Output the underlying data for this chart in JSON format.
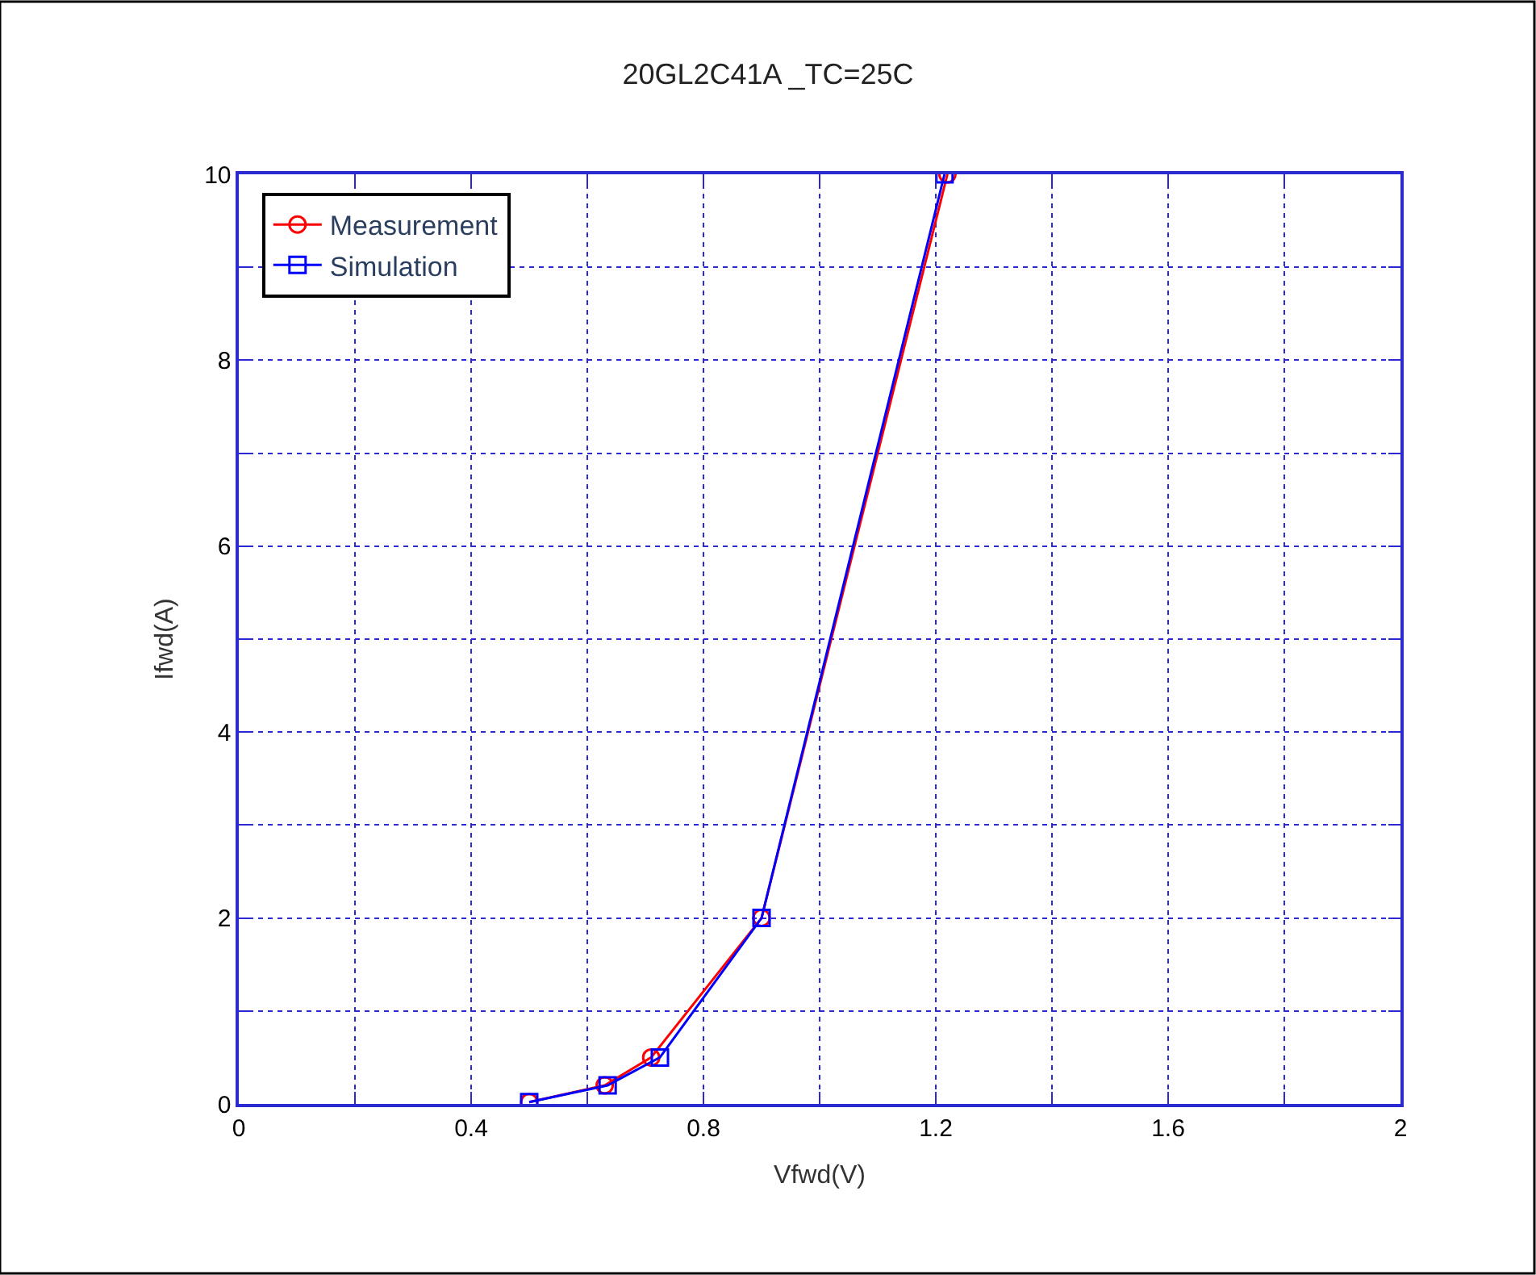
{
  "chart_data": {
    "type": "line",
    "title": "20GL2C41A _TC=25C",
    "xlabel": "Vfwd(V)",
    "ylabel": "Ifwd(A)",
    "series": [
      {
        "name": "Measurement",
        "color": "#ff0000",
        "marker": "circle",
        "x": [
          0.5,
          0.63,
          0.71,
          0.9,
          1.22
        ],
        "values": [
          0.02,
          0.2,
          0.5,
          2.0,
          10.0
        ]
      },
      {
        "name": "Simulation",
        "color": "#0000ff",
        "marker": "square",
        "x": [
          0.5,
          0.635,
          0.725,
          0.9,
          1.215
        ],
        "values": [
          0.02,
          0.2,
          0.5,
          2.0,
          10.0
        ]
      }
    ],
    "xlim": [
      0,
      2
    ],
    "ylim": [
      0,
      10
    ],
    "xticks": [
      0,
      {
        "value": 0.2,
        "label": null
      },
      0.4,
      {
        "value": 0.6,
        "label": null
      },
      0.8,
      {
        "value": 1.0,
        "label": null
      },
      1.2,
      {
        "value": 1.4,
        "label": null
      },
      1.6,
      {
        "value": 1.8,
        "label": null
      },
      2
    ],
    "yticks": [
      0,
      {
        "value": 1,
        "label": null
      },
      2,
      {
        "value": 3,
        "label": null
      },
      4,
      {
        "value": 5,
        "label": null
      },
      6,
      {
        "value": 7,
        "label": null
      },
      8,
      {
        "value": 9,
        "label": null
      },
      10
    ],
    "grid": true,
    "legend": "top left",
    "line_style": "solid"
  }
}
